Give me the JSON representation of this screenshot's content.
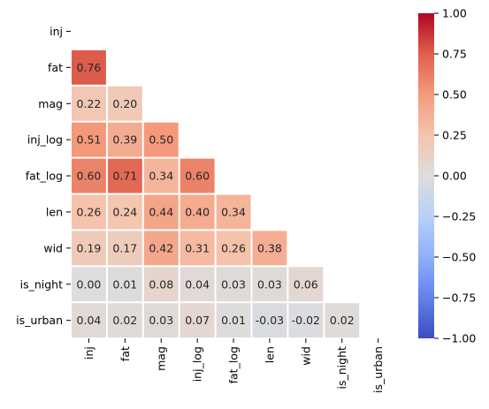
{
  "chart_data": {
    "type": "heatmap",
    "title": "",
    "xlabel": "",
    "ylabel": "",
    "variables": [
      "inj",
      "fat",
      "mag",
      "inj_log",
      "fat_log",
      "len",
      "wid",
      "is_night",
      "is_urban"
    ],
    "mask": "upper-triangle-including-diagonal",
    "values": [
      [
        null,
        null,
        null,
        null,
        null,
        null,
        null,
        null,
        null
      ],
      [
        0.76,
        null,
        null,
        null,
        null,
        null,
        null,
        null,
        null
      ],
      [
        0.22,
        0.2,
        null,
        null,
        null,
        null,
        null,
        null,
        null
      ],
      [
        0.51,
        0.39,
        0.5,
        null,
        null,
        null,
        null,
        null,
        null
      ],
      [
        0.6,
        0.71,
        0.34,
        0.6,
        null,
        null,
        null,
        null,
        null
      ],
      [
        0.26,
        0.24,
        0.44,
        0.4,
        0.34,
        null,
        null,
        null,
        null
      ],
      [
        0.19,
        0.17,
        0.42,
        0.31,
        0.26,
        0.38,
        null,
        null,
        null
      ],
      [
        0.0,
        0.01,
        0.08,
        0.04,
        0.03,
        0.03,
        0.06,
        null,
        null
      ],
      [
        0.04,
        0.02,
        0.03,
        0.07,
        0.01,
        -0.03,
        -0.02,
        0.02,
        null
      ]
    ],
    "annotation_format": "2 decimals",
    "colormap": "coolwarm",
    "vmin": -1.0,
    "vmax": 1.0,
    "colorbar_ticks": [
      "1.00",
      "0.75",
      "0.50",
      "0.25",
      "0.00",
      "−0.25",
      "−0.50",
      "−0.75",
      "−1.00"
    ],
    "colorbar_tick_values": [
      1.0,
      0.75,
      0.5,
      0.25,
      0.0,
      -0.25,
      -0.5,
      -0.75,
      -1.0
    ],
    "cell_border_color": "#ffffff",
    "grid": false,
    "colorbar_placement": "right"
  }
}
